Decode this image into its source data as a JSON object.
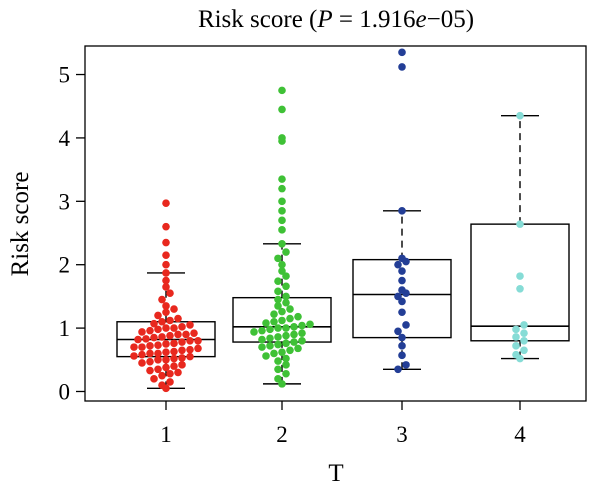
{
  "chart_data": {
    "type": "boxplot",
    "title": "Risk score (P = 1.916e−05)",
    "title_parts": {
      "prefix": "Risk score (",
      "p_symbol": "P",
      "eq": " = 1.916",
      "e_symbol": "e",
      "suffix": "−05)"
    },
    "xlabel": "T",
    "ylabel": "Risk score",
    "categories": [
      "1",
      "2",
      "3",
      "4"
    ],
    "yticks": [
      "0",
      "1",
      "2",
      "3",
      "4",
      "5"
    ],
    "ylim": [
      -0.15,
      5.45
    ],
    "grid": false,
    "legend": "none",
    "groups": [
      {
        "name": "1",
        "color": "#e8281e",
        "box": {
          "whisker_low": 0.05,
          "q1": 0.55,
          "median": 0.82,
          "q3": 1.1,
          "whisker_high": 1.87
        },
        "outliers": [
          2.0,
          2.15,
          2.35,
          2.6,
          2.97
        ],
        "points": [
          0.05,
          0.1,
          0.15,
          0.2,
          0.25,
          0.28,
          0.3,
          0.33,
          0.35,
          0.38,
          0.4,
          0.42,
          0.45,
          0.47,
          0.5,
          0.5,
          0.52,
          0.53,
          0.55,
          0.56,
          0.58,
          0.6,
          0.6,
          0.62,
          0.63,
          0.65,
          0.66,
          0.68,
          0.7,
          0.7,
          0.72,
          0.73,
          0.75,
          0.76,
          0.78,
          0.8,
          0.8,
          0.82,
          0.83,
          0.85,
          0.86,
          0.88,
          0.9,
          0.9,
          0.92,
          0.94,
          0.96,
          0.98,
          1.0,
          1.0,
          1.02,
          1.05,
          1.07,
          1.1,
          1.12,
          1.15,
          1.2,
          1.25,
          1.3,
          1.35,
          1.45,
          1.55,
          1.65,
          1.75,
          1.87
        ]
      },
      {
        "name": "2",
        "color": "#3fc136",
        "box": {
          "whisker_low": 0.12,
          "q1": 0.78,
          "median": 1.02,
          "q3": 1.48,
          "whisker_high": 2.33
        },
        "outliers": [
          2.55,
          2.7,
          2.85,
          3.0,
          3.2,
          3.35,
          3.95,
          4.0,
          4.45,
          4.75
        ],
        "points": [
          0.12,
          0.2,
          0.28,
          0.35,
          0.42,
          0.48,
          0.52,
          0.56,
          0.6,
          0.62,
          0.65,
          0.68,
          0.7,
          0.72,
          0.74,
          0.76,
          0.78,
          0.8,
          0.82,
          0.84,
          0.86,
          0.88,
          0.9,
          0.92,
          0.94,
          0.96,
          0.98,
          1.0,
          1.0,
          1.02,
          1.04,
          1.06,
          1.08,
          1.1,
          1.12,
          1.15,
          1.18,
          1.22,
          1.26,
          1.3,
          1.35,
          1.4,
          1.45,
          1.5,
          1.58,
          1.66,
          1.74,
          1.82,
          1.9,
          2.0,
          2.1,
          2.2,
          2.33
        ]
      },
      {
        "name": "3",
        "color": "#233e96",
        "box": {
          "whisker_low": 0.35,
          "q1": 0.85,
          "median": 1.53,
          "q3": 2.08,
          "whisker_high": 2.85
        },
        "outliers": [
          5.12,
          5.35
        ],
        "points": [
          0.35,
          0.42,
          0.57,
          0.72,
          0.85,
          0.95,
          1.05,
          1.25,
          1.42,
          1.5,
          1.55,
          1.6,
          1.75,
          1.9,
          2.0,
          2.05,
          2.1,
          2.85
        ]
      },
      {
        "name": "4",
        "color": "#86dcd6",
        "box": {
          "whisker_low": 0.52,
          "q1": 0.8,
          "median": 1.03,
          "q3": 2.64,
          "whisker_high": 4.35
        },
        "outliers": [],
        "points": [
          0.52,
          0.58,
          0.65,
          0.72,
          0.8,
          0.86,
          0.92,
          0.98,
          1.05,
          1.62,
          1.82,
          2.64,
          4.35
        ]
      }
    ]
  }
}
